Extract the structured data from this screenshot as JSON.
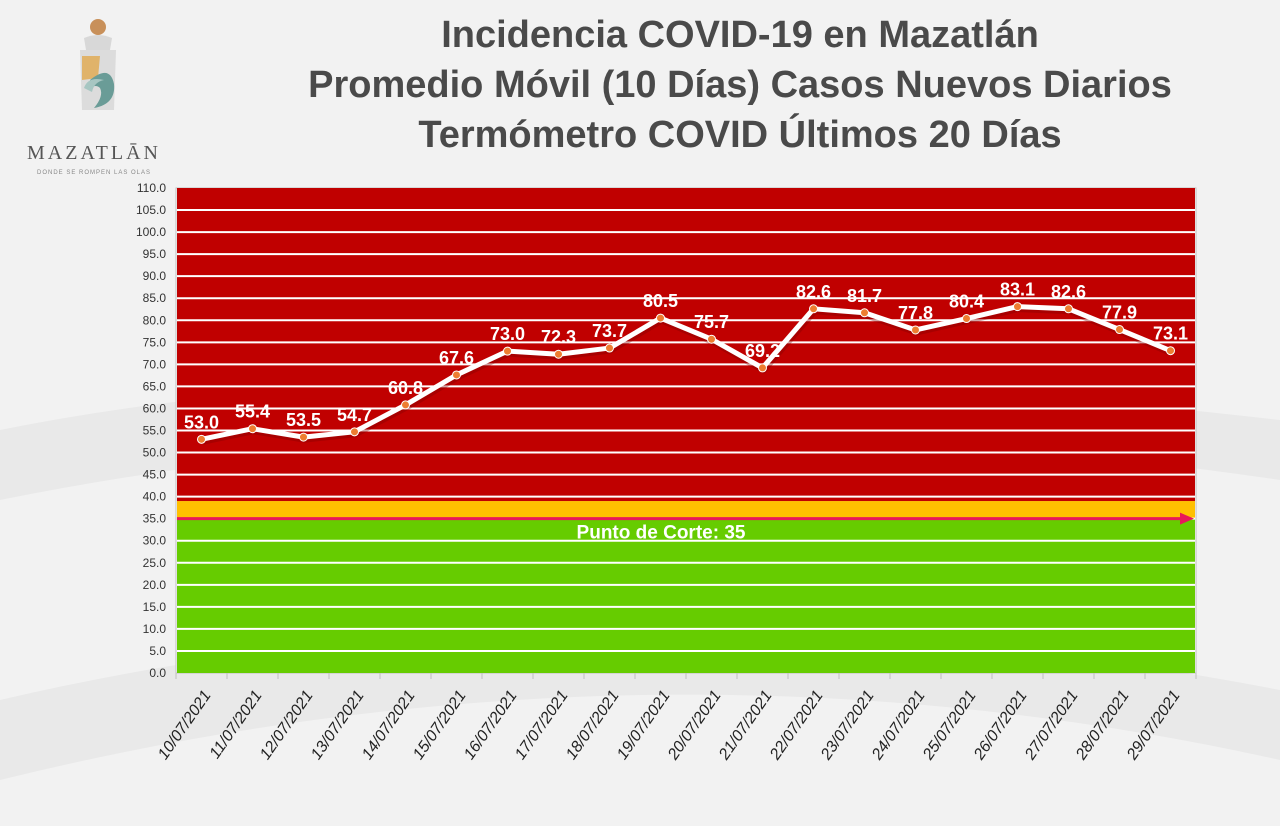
{
  "titles": {
    "line1": "Incidencia COVID-19 en Mazatlán",
    "line2": "Promedio Móvil (10 Días) Casos Nuevos Diarios",
    "line3": "Termómetro COVID Últimos 20 Días"
  },
  "logo": {
    "name": "MAZATLĀN",
    "tagline": "DONDE SE ROMPEN LAS OLAS"
  },
  "colors": {
    "red_zone": "#c00000",
    "yellow_zone": "#ffc000",
    "green_zone": "#66cc00",
    "line": "#ffffff",
    "marker": "#ed7d31",
    "cutoff_arrow": "#e8185a",
    "title": "#4a4a4a"
  },
  "chart_data": {
    "type": "line",
    "title": "",
    "xlabel": "",
    "ylabel": "",
    "ylim": [
      0,
      110
    ],
    "ytick_step": 5,
    "grid": true,
    "categories": [
      "10/07/2021",
      "11/07/2021",
      "12/07/2021",
      "13/07/2021",
      "14/07/2021",
      "15/07/2021",
      "16/07/2021",
      "17/07/2021",
      "18/07/2021",
      "19/07/2021",
      "20/07/2021",
      "21/07/2021",
      "22/07/2021",
      "23/07/2021",
      "24/07/2021",
      "25/07/2021",
      "26/07/2021",
      "27/07/2021",
      "28/07/2021",
      "29/07/2021"
    ],
    "values": [
      53.0,
      55.4,
      53.5,
      54.7,
      60.8,
      67.6,
      73.0,
      72.3,
      73.7,
      80.5,
      75.7,
      69.2,
      82.6,
      81.7,
      77.8,
      80.4,
      83.1,
      82.6,
      77.9,
      73.1
    ],
    "data_labels": [
      "53.0",
      "55.4",
      "53.5",
      "54.7",
      "60.8",
      "67.6",
      "73.0",
      "72.3",
      "73.7",
      "80.5",
      "75.7",
      "69.2",
      "82.6",
      "81.7",
      "77.8",
      "80.4",
      "83.1",
      "82.6",
      "77.9",
      "73.1"
    ],
    "zones": [
      {
        "name": "green",
        "from": 0,
        "to": 35
      },
      {
        "name": "yellow",
        "from": 35,
        "to": 39
      },
      {
        "name": "red",
        "from": 39,
        "to": 110
      }
    ],
    "cutoff": {
      "value": 35,
      "label": "Punto de Corte: 35"
    }
  }
}
